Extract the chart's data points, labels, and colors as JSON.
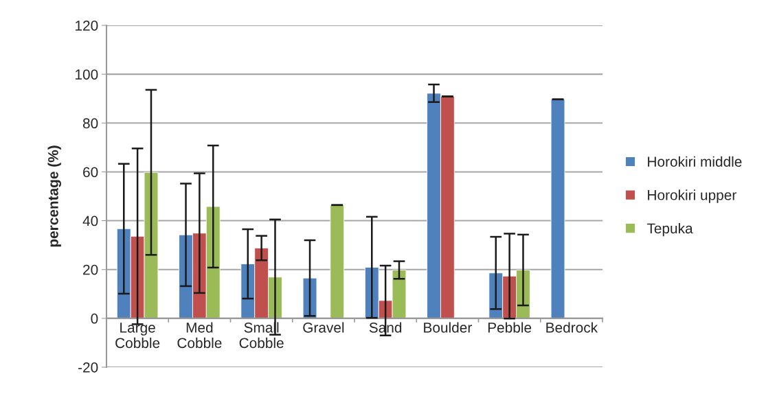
{
  "chart_data": {
    "type": "bar",
    "ylabel": "percentage (%)",
    "categories": [
      "Large\nCobble",
      "Med\nCobble",
      "Small\nCobble",
      "Gravel",
      "Sand",
      "Boulder",
      "Pebble",
      "Bedrock"
    ],
    "series": [
      {
        "name": "Horokiri middle",
        "color": "#4f81bd",
        "values": [
          36.7,
          34.2,
          22.3,
          16.5,
          20.9,
          92.2,
          18.6,
          89.7
        ],
        "errors": [
          26.6,
          21,
          14.2,
          15.5,
          20.7,
          3.6,
          14.8,
          0
        ]
      },
      {
        "name": "Horokiri upper",
        "color": "#c0504d",
        "values": [
          33.6,
          34.9,
          28.8,
          null,
          7.3,
          90.9,
          17.3,
          null
        ],
        "errors": [
          36,
          24.5,
          5,
          null,
          14.3,
          0,
          17.4,
          null
        ]
      },
      {
        "name": "Tepuka",
        "color": "#9bbb59",
        "values": [
          59.8,
          45.8,
          16.9,
          46.4,
          19.8,
          null,
          19.8,
          null
        ],
        "errors": [
          33.8,
          25,
          23.6,
          0,
          3.6,
          null,
          14.5,
          null
        ]
      }
    ],
    "ylim": [
      -20,
      120
    ],
    "yticks": [
      -20,
      0,
      20,
      40,
      60,
      80,
      100,
      120
    ],
    "grid": "y",
    "legend": "right"
  }
}
